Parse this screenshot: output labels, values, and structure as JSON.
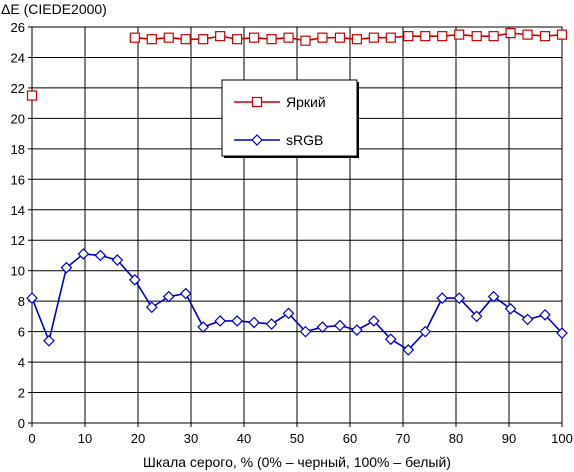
{
  "chart_data": {
    "type": "line",
    "ylabel": "ΔE (CIEDE2000)",
    "xlabel": "Шкала серого, % (0% – черный, 100% – белый)",
    "xlim": [
      0,
      100
    ],
    "ylim": [
      0,
      26
    ],
    "x_ticks": [
      0,
      10,
      20,
      30,
      40,
      50,
      60,
      70,
      80,
      90,
      100
    ],
    "y_ticks": [
      0,
      2,
      4,
      6,
      8,
      10,
      12,
      14,
      16,
      18,
      20,
      22,
      24,
      26
    ],
    "grid": true,
    "legend_position": "upper-center",
    "series": [
      {
        "name": "Яркий",
        "color": "#cc0000",
        "marker": "square",
        "points": [
          {
            "x": 0,
            "y": 21.5
          },
          {
            "x": 19.4,
            "y": 25.3
          },
          {
            "x": 22.6,
            "y": 25.2
          },
          {
            "x": 25.8,
            "y": 25.3
          },
          {
            "x": 29,
            "y": 25.2
          },
          {
            "x": 32.3,
            "y": 25.2
          },
          {
            "x": 35.5,
            "y": 25.4
          },
          {
            "x": 38.7,
            "y": 25.2
          },
          {
            "x": 41.9,
            "y": 25.3
          },
          {
            "x": 45.2,
            "y": 25.2
          },
          {
            "x": 48.4,
            "y": 25.3
          },
          {
            "x": 51.6,
            "y": 25.1
          },
          {
            "x": 54.8,
            "y": 25.3
          },
          {
            "x": 58.1,
            "y": 25.3
          },
          {
            "x": 61.3,
            "y": 25.2
          },
          {
            "x": 64.5,
            "y": 25.3
          },
          {
            "x": 67.7,
            "y": 25.3
          },
          {
            "x": 71,
            "y": 25.4
          },
          {
            "x": 74.2,
            "y": 25.4
          },
          {
            "x": 77.4,
            "y": 25.4
          },
          {
            "x": 80.6,
            "y": 25.5
          },
          {
            "x": 83.9,
            "y": 25.4
          },
          {
            "x": 87.1,
            "y": 25.4
          },
          {
            "x": 90.3,
            "y": 25.6
          },
          {
            "x": 93.5,
            "y": 25.5
          },
          {
            "x": 96.8,
            "y": 25.4
          },
          {
            "x": 100,
            "y": 25.5
          }
        ]
      },
      {
        "name": "sRGB",
        "color": "#0000cc",
        "marker": "diamond",
        "points": [
          {
            "x": 0,
            "y": 8.2
          },
          {
            "x": 3.2,
            "y": 5.4
          },
          {
            "x": 6.5,
            "y": 10.2
          },
          {
            "x": 9.7,
            "y": 11.1
          },
          {
            "x": 12.9,
            "y": 11.0
          },
          {
            "x": 16.1,
            "y": 10.7
          },
          {
            "x": 19.4,
            "y": 9.4
          },
          {
            "x": 22.6,
            "y": 7.6
          },
          {
            "x": 25.8,
            "y": 8.3
          },
          {
            "x": 29,
            "y": 8.5
          },
          {
            "x": 32.3,
            "y": 6.3
          },
          {
            "x": 35.5,
            "y": 6.7
          },
          {
            "x": 38.7,
            "y": 6.7
          },
          {
            "x": 41.9,
            "y": 6.6
          },
          {
            "x": 45.2,
            "y": 6.5
          },
          {
            "x": 48.4,
            "y": 7.2
          },
          {
            "x": 51.6,
            "y": 6.0
          },
          {
            "x": 54.8,
            "y": 6.3
          },
          {
            "x": 58.1,
            "y": 6.4
          },
          {
            "x": 61.3,
            "y": 6.1
          },
          {
            "x": 64.5,
            "y": 6.7
          },
          {
            "x": 67.7,
            "y": 5.5
          },
          {
            "x": 71,
            "y": 4.8
          },
          {
            "x": 74.2,
            "y": 6.0
          },
          {
            "x": 77.4,
            "y": 8.2
          },
          {
            "x": 80.6,
            "y": 8.2
          },
          {
            "x": 83.9,
            "y": 7.0
          },
          {
            "x": 87.1,
            "y": 8.3
          },
          {
            "x": 90.3,
            "y": 7.5
          },
          {
            "x": 93.5,
            "y": 6.8
          },
          {
            "x": 96.8,
            "y": 7.1
          },
          {
            "x": 100,
            "y": 5.9
          }
        ]
      }
    ]
  }
}
